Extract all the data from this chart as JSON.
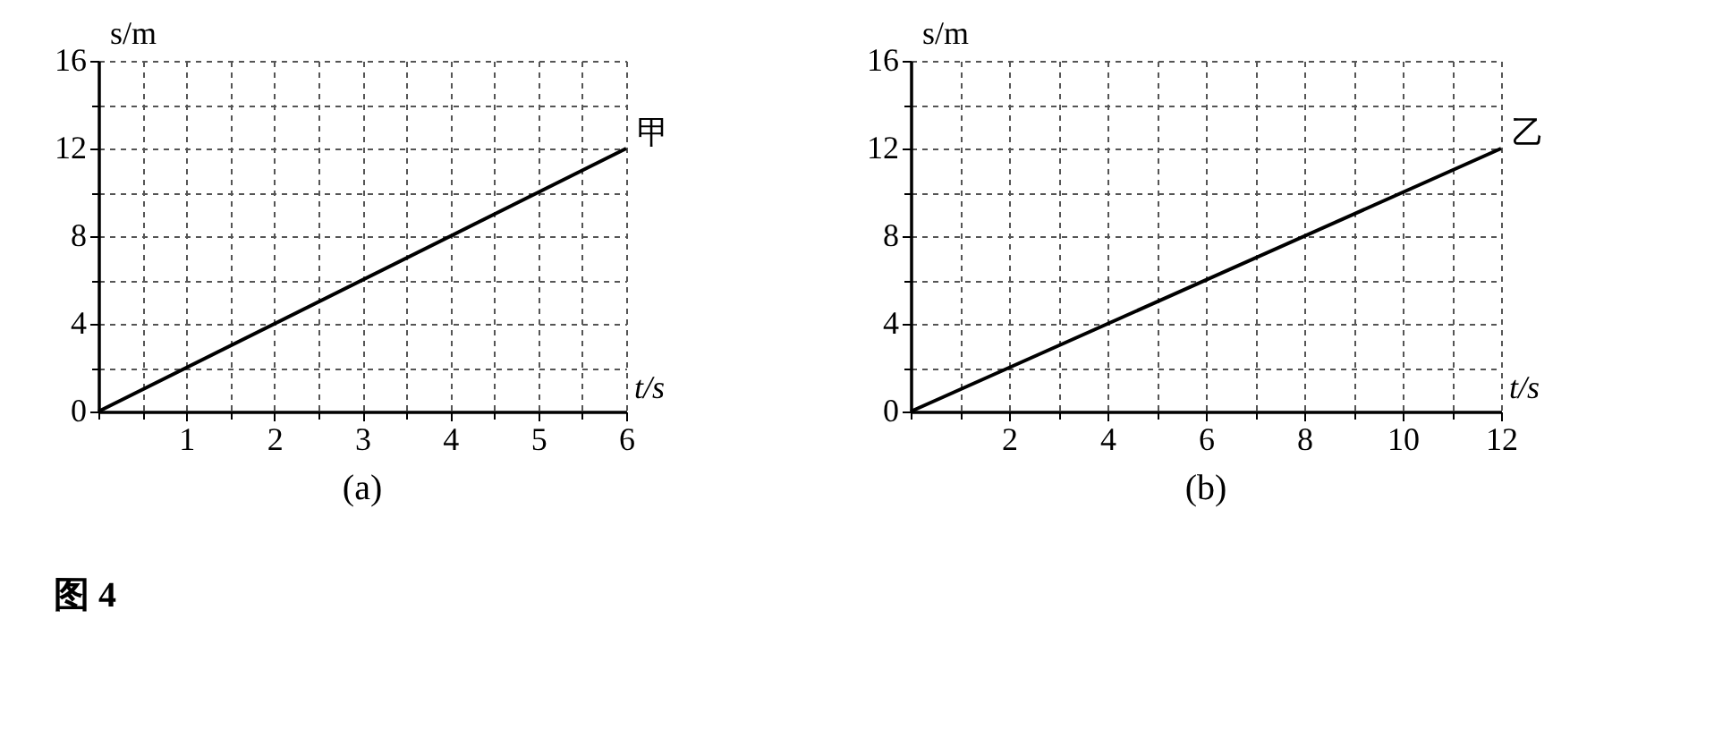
{
  "chart_data": [
    {
      "type": "line",
      "title": "(a)",
      "xlabel": "t/s",
      "ylabel": "s/m",
      "x": [
        0,
        6
      ],
      "series": [
        {
          "name": "甲",
          "color": "#000000",
          "values": [
            0,
            12
          ]
        }
      ],
      "xlim": [
        0,
        6
      ],
      "ylim": [
        0,
        16
      ],
      "xticks": [
        {
          "value": 0,
          "label": null
        },
        {
          "value": 0.5,
          "label": null
        },
        1,
        {
          "value": 1.5,
          "label": null
        },
        2,
        {
          "value": 2.5,
          "label": null
        },
        3,
        {
          "value": 3.5,
          "label": null
        },
        4,
        {
          "value": 4.5,
          "label": null
        },
        5,
        {
          "value": 5.5,
          "label": null
        },
        6
      ],
      "yticks": [
        0,
        {
          "value": 2,
          "label": null
        },
        4,
        {
          "value": 6,
          "label": null
        },
        8,
        {
          "value": 10,
          "label": null
        },
        12,
        {
          "value": 14,
          "label": null
        },
        16
      ],
      "grid": true,
      "line_style": "solid",
      "annotations": [
        "图 4"
      ]
    },
    {
      "type": "line",
      "title": "(b)",
      "xlabel": "t/s",
      "ylabel": "s/m",
      "x": [
        0,
        12
      ],
      "series": [
        {
          "name": "乙",
          "color": "#000000",
          "values": [
            0,
            12
          ]
        }
      ],
      "xlim": [
        0,
        12
      ],
      "ylim": [
        0,
        16
      ],
      "xticks": [
        {
          "value": 0,
          "label": null
        },
        {
          "value": 1,
          "label": null
        },
        2,
        {
          "value": 3,
          "label": null
        },
        4,
        {
          "value": 5,
          "label": null
        },
        6,
        {
          "value": 7,
          "label": null
        },
        8,
        {
          "value": 9,
          "label": null
        },
        10,
        {
          "value": 11,
          "label": null
        },
        12
      ],
      "yticks": [
        0,
        {
          "value": 2,
          "label": null
        },
        4,
        {
          "value": 6,
          "label": null
        },
        8,
        {
          "value": 10,
          "label": null
        },
        12,
        {
          "value": 14,
          "label": null
        },
        16
      ],
      "grid": true,
      "line_style": "solid"
    }
  ]
}
